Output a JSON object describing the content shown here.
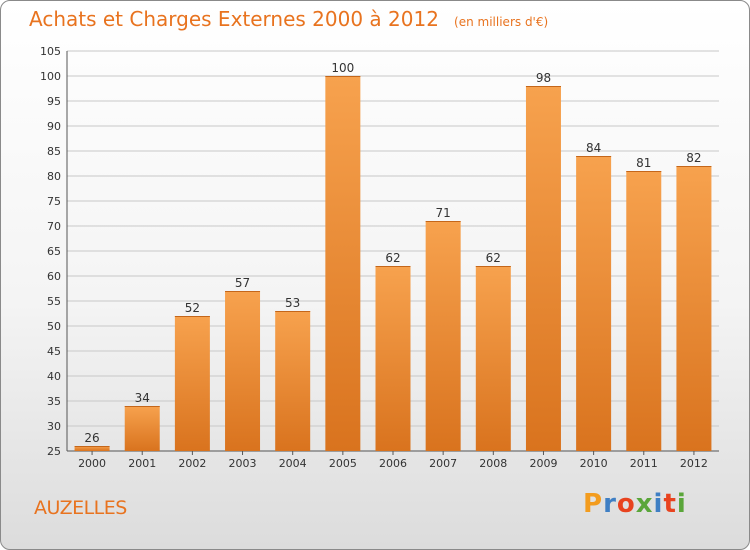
{
  "chart_data": {
    "type": "bar",
    "title": "Achats et Charges Externes 2000 à 2012",
    "subtitle": "(en milliers d'€)",
    "categories": [
      "2000",
      "2001",
      "2002",
      "2003",
      "2004",
      "2005",
      "2006",
      "2007",
      "2008",
      "2009",
      "2010",
      "2011",
      "2012"
    ],
    "values": [
      26,
      34,
      52,
      57,
      53,
      100,
      62,
      71,
      62,
      98,
      84,
      81,
      82
    ],
    "ylim": [
      25,
      105
    ],
    "yticks": [
      25,
      30,
      35,
      40,
      45,
      50,
      55,
      60,
      65,
      70,
      75,
      80,
      85,
      90,
      95,
      100,
      105
    ],
    "grid": true,
    "xlabel": "",
    "ylabel": "",
    "bar_color_top": "#f7a24e",
    "bar_color_bottom": "#d9731e"
  },
  "footer": {
    "commune": "AUZELLES",
    "brand_letters": [
      "P",
      "r",
      "o",
      "x",
      "i",
      "t",
      "i"
    ],
    "brand_colors": [
      "#f39c1e",
      "#3f7fc4",
      "#e8431f",
      "#5aa63a",
      "#3f7fc4",
      "#e8431f",
      "#5aa63a"
    ]
  }
}
